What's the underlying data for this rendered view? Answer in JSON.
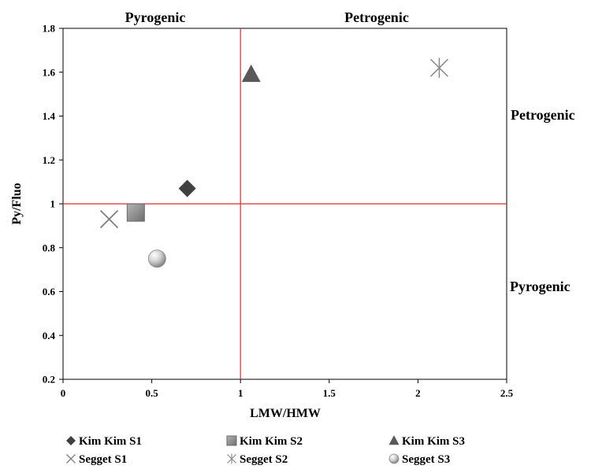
{
  "chart_data": {
    "type": "scatter",
    "xlabel": "LMW/HMW",
    "ylabel": "Py/Fluo",
    "xlim": [
      0,
      2.5
    ],
    "ylim": [
      0.2,
      1.8
    ],
    "xticks": [
      "0",
      "0.5",
      "1",
      "1.5",
      "2",
      "2.5"
    ],
    "yticks": [
      "0.2",
      "0.4",
      "0.6",
      "0.8",
      "1",
      "1.2",
      "1.4",
      "1.6",
      "1.8"
    ],
    "grid": false,
    "legend_position": "bottom",
    "threshold_lines": {
      "x": 1,
      "y": 1,
      "color": "#e0282e"
    },
    "region_labels": {
      "top_left": "Pyrogenic",
      "top_right": "Petrogenic",
      "right_upper": "Petrogenic",
      "right_lower": "Pyrogenic"
    },
    "series": [
      {
        "name": "Kim Kim S1",
        "marker": "diamond",
        "color": "#404040",
        "x": [
          0.7
        ],
        "y": [
          1.07
        ]
      },
      {
        "name": "Kim Kim S2",
        "marker": "square",
        "color": "#7f7f7f",
        "x": [
          0.41
        ],
        "y": [
          0.96
        ]
      },
      {
        "name": "Kim Kim S3",
        "marker": "triangle",
        "color": "#595959",
        "x": [
          1.06
        ],
        "y": [
          1.59
        ]
      },
      {
        "name": "Segget S1",
        "marker": "x",
        "color": "#7f7f7f",
        "x": [
          0.26
        ],
        "y": [
          0.93
        ]
      },
      {
        "name": "Segget S2",
        "marker": "asterisk",
        "color": "#8c8c8c",
        "x": [
          2.12
        ],
        "y": [
          1.62
        ]
      },
      {
        "name": "Segget S3",
        "marker": "circle",
        "color": "#a6a6a6",
        "x": [
          0.53
        ],
        "y": [
          0.75
        ]
      }
    ]
  }
}
